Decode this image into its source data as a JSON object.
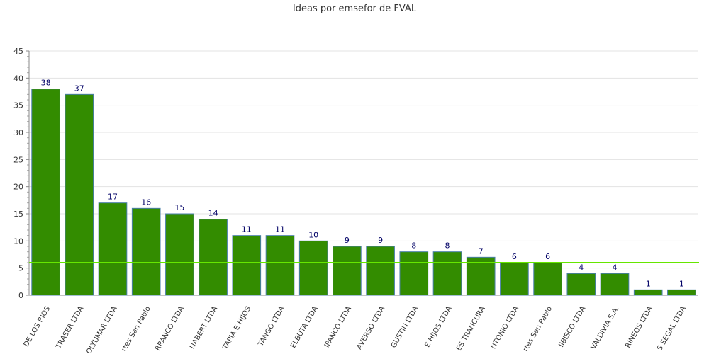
{
  "chart_data": {
    "type": "bar",
    "title": "Ideas por emsefor de FVAL",
    "xlabel": "",
    "ylabel": "",
    "ylim": [
      0,
      45
    ],
    "yticks": [
      0,
      5,
      10,
      15,
      20,
      25,
      30,
      35,
      40,
      45
    ],
    "grid": true,
    "bar_color": "#338c00",
    "bar_border_color": "#4a7fa8",
    "average_line_color": "#66e600",
    "average_value": 6,
    "categories": [
      "DE LOS RIOS",
      "TRASER LTDA",
      "OLYUMAR LTDA",
      "rtes San Pablo",
      "RRANCO LTDA",
      "NABERT LTDA",
      "TAPIA E HIJOS",
      "TANGO LTDA",
      "ELBUTA LTDA",
      "IPANCO LTDA",
      "AVERSO LTDA",
      "GUSTIN LTDA",
      "E HIJOS LTDA",
      "ES TRANCURA",
      "NTONIO LTDA",
      "rtes San Pablo",
      "IIBISCO LTDA",
      "VALDIVIA S.A.",
      "RINEOS LTDA",
      "S SEGAL LTDA"
    ],
    "values": [
      38,
      37,
      17,
      16,
      15,
      14,
      11,
      11,
      10,
      9,
      9,
      8,
      8,
      7,
      6,
      6,
      4,
      4,
      1,
      1
    ]
  }
}
